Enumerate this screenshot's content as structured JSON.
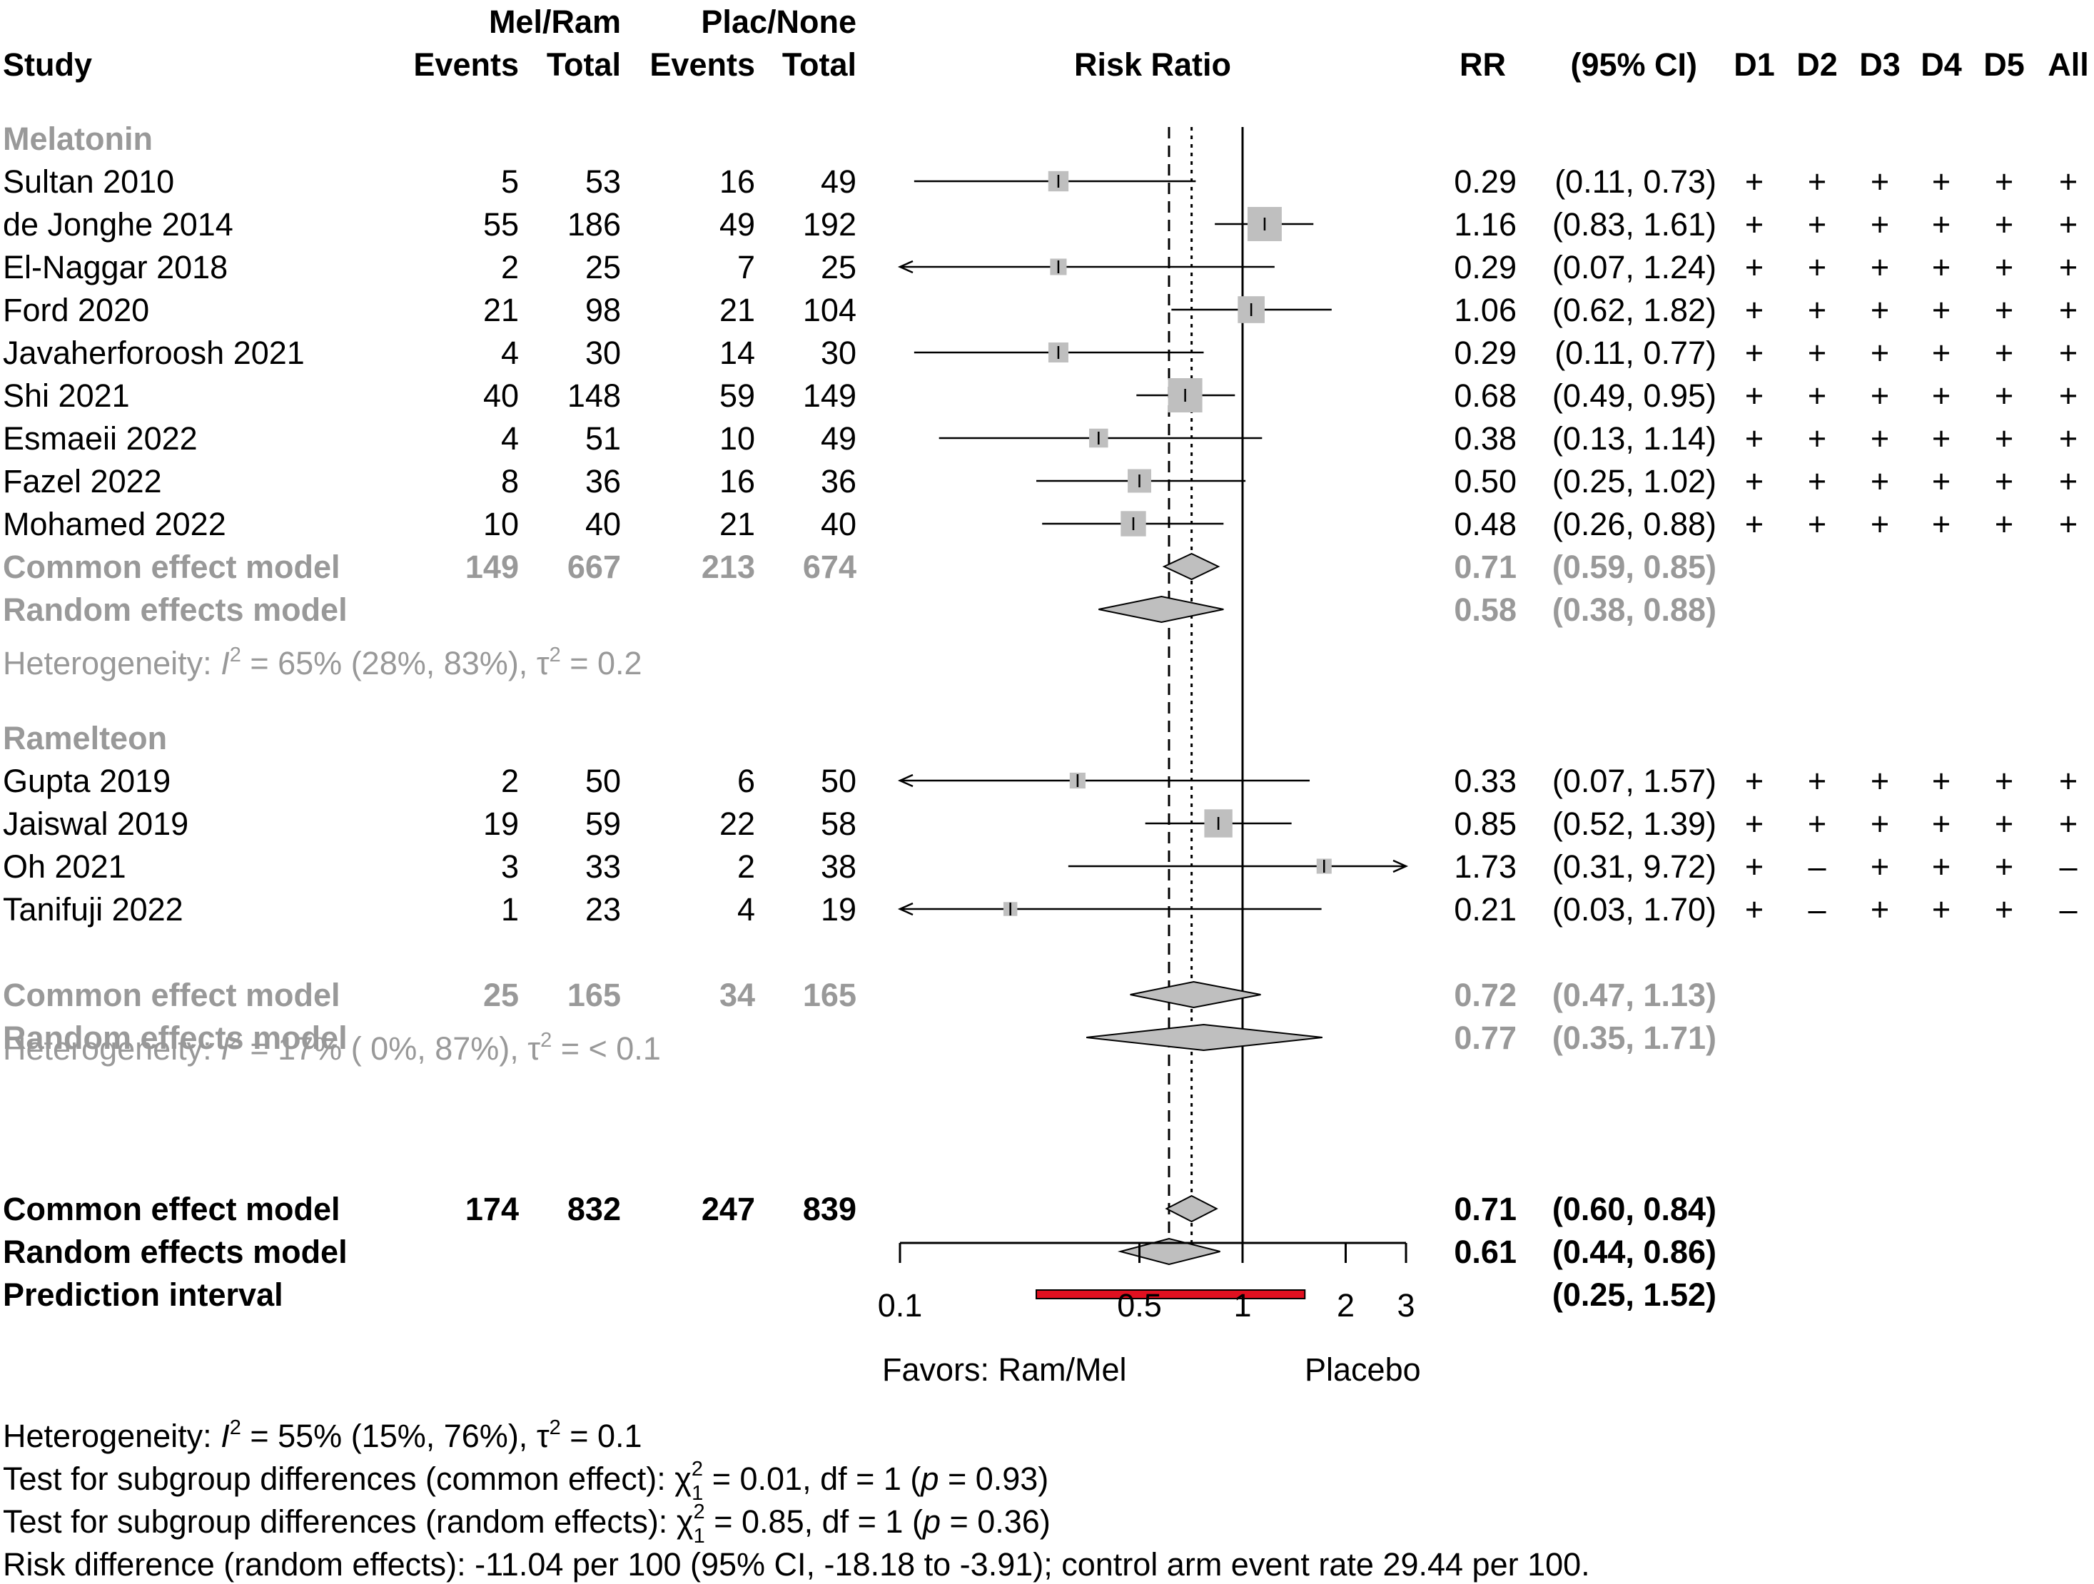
{
  "chart_data": {
    "type": "forest",
    "xscale": "log",
    "xlim": [
      0.1,
      3
    ],
    "xticks": [
      0.1,
      0.5,
      1,
      2,
      3
    ],
    "reference_line": 1,
    "common_line": 0.71,
    "random_line": 0.61,
    "headers": {
      "study": "Study",
      "group1": "Mel/Ram",
      "group2": "Plac/None",
      "events": "Events",
      "total": "Total",
      "axis_title": "Risk Ratio",
      "rr": "RR",
      "ci": "(95% CI)",
      "rob": [
        "D1",
        "D2",
        "D3",
        "D4",
        "D5",
        "All"
      ]
    },
    "subgroups": [
      {
        "name": "Melatonin",
        "studies": [
          {
            "study": "Sultan 2010",
            "e1": "5",
            "n1": "53",
            "e2": "16",
            "n2": "49",
            "rr": 0.29,
            "lo": 0.11,
            "hi": 0.73,
            "rr_text": "0.29",
            "ci_text": "(0.11, 0.73)",
            "rob": [
              "+",
              "+",
              "+",
              "+",
              "+",
              "+"
            ]
          },
          {
            "study": "de Jonghe 2014",
            "e1": "55",
            "n1": "186",
            "e2": "49",
            "n2": "192",
            "rr": 1.16,
            "lo": 0.83,
            "hi": 1.61,
            "rr_text": "1.16",
            "ci_text": "(0.83, 1.61)",
            "rob": [
              "+",
              "+",
              "+",
              "+",
              "+",
              "+"
            ]
          },
          {
            "study": "El-Naggar 2018",
            "e1": "2",
            "n1": "25",
            "e2": "7",
            "n2": "25",
            "rr": 0.29,
            "lo": 0.07,
            "hi": 1.24,
            "rr_text": "0.29",
            "ci_text": "(0.07, 1.24)",
            "rob": [
              "+",
              "+",
              "+",
              "+",
              "+",
              "+"
            ]
          },
          {
            "study": "Ford 2020",
            "e1": "21",
            "n1": "98",
            "e2": "21",
            "n2": "104",
            "rr": 1.06,
            "lo": 0.62,
            "hi": 1.82,
            "rr_text": "1.06",
            "ci_text": "(0.62, 1.82)",
            "rob": [
              "+",
              "+",
              "+",
              "+",
              "+",
              "+"
            ]
          },
          {
            "study": "Javaherforoosh 2021",
            "e1": "4",
            "n1": "30",
            "e2": "14",
            "n2": "30",
            "rr": 0.29,
            "lo": 0.11,
            "hi": 0.77,
            "rr_text": "0.29",
            "ci_text": "(0.11, 0.77)",
            "rob": [
              "+",
              "+",
              "+",
              "+",
              "+",
              "+"
            ]
          },
          {
            "study": "Shi 2021",
            "e1": "40",
            "n1": "148",
            "e2": "59",
            "n2": "149",
            "rr": 0.68,
            "lo": 0.49,
            "hi": 0.95,
            "rr_text": "0.68",
            "ci_text": "(0.49, 0.95)",
            "rob": [
              "+",
              "+",
              "+",
              "+",
              "+",
              "+"
            ]
          },
          {
            "study": "Esmaeii 2022",
            "e1": "4",
            "n1": "51",
            "e2": "10",
            "n2": "49",
            "rr": 0.38,
            "lo": 0.13,
            "hi": 1.14,
            "rr_text": "0.38",
            "ci_text": "(0.13, 1.14)",
            "rob": [
              "+",
              "+",
              "+",
              "+",
              "+",
              "+"
            ]
          },
          {
            "study": "Fazel 2022",
            "e1": "8",
            "n1": "36",
            "e2": "16",
            "n2": "36",
            "rr": 0.5,
            "lo": 0.25,
            "hi": 1.02,
            "rr_text": "0.50",
            "ci_text": "(0.25, 1.02)",
            "rob": [
              "+",
              "+",
              "+",
              "+",
              "+",
              "+"
            ]
          },
          {
            "study": "Mohamed 2022",
            "e1": "10",
            "n1": "40",
            "e2": "21",
            "n2": "40",
            "rr": 0.48,
            "lo": 0.26,
            "hi": 0.88,
            "rr_text": "0.48",
            "ci_text": "(0.26, 0.88)",
            "rob": [
              "+",
              "+",
              "+",
              "+",
              "+",
              "+"
            ]
          }
        ],
        "common": {
          "label": "Common effect model",
          "e1": "149",
          "n1": "667",
          "e2": "213",
          "n2": "674",
          "rr": 0.71,
          "lo": 0.59,
          "hi": 0.85,
          "rr_text": "0.71",
          "ci_text": "(0.59, 0.85)"
        },
        "random": {
          "label": "Random effects model",
          "rr": 0.58,
          "lo": 0.38,
          "hi": 0.88,
          "rr_text": "0.58",
          "ci_text": "(0.38, 0.88)"
        },
        "heterogeneity": {
          "prefix": "Heterogeneity: ",
          "i": "I",
          "i_exp": "2",
          "mid": " = 65% (28%, 83%), ",
          "tau": "τ",
          "tau_exp": "2",
          "end": " = 0.2"
        }
      },
      {
        "name": "Ramelteon",
        "studies": [
          {
            "study": "Gupta 2019",
            "e1": "2",
            "n1": "50",
            "e2": "6",
            "n2": "50",
            "rr": 0.33,
            "lo": 0.07,
            "hi": 1.57,
            "rr_text": "0.33",
            "ci_text": "(0.07, 1.57)",
            "rob": [
              "+",
              "+",
              "+",
              "+",
              "+",
              "+"
            ]
          },
          {
            "study": "Jaiswal 2019",
            "e1": "19",
            "n1": "59",
            "e2": "22",
            "n2": "58",
            "rr": 0.85,
            "lo": 0.52,
            "hi": 1.39,
            "rr_text": "0.85",
            "ci_text": "(0.52, 1.39)",
            "rob": [
              "+",
              "+",
              "+",
              "+",
              "+",
              "+"
            ]
          },
          {
            "study": "Oh 2021",
            "e1": "3",
            "n1": "33",
            "e2": "2",
            "n2": "38",
            "rr": 1.73,
            "lo": 0.31,
            "hi": 9.72,
            "rr_text": "1.73",
            "ci_text": "(0.31, 9.72)",
            "rob": [
              "+",
              "–",
              "+",
              "+",
              "+",
              "–"
            ]
          },
          {
            "study": "Tanifuji 2022",
            "e1": "1",
            "n1": "23",
            "e2": "4",
            "n2": "19",
            "rr": 0.21,
            "lo": 0.03,
            "hi": 1.7,
            "rr_text": "0.21",
            "ci_text": "(0.03, 1.70)",
            "rob": [
              "+",
              "–",
              "+",
              "+",
              "+",
              "–"
            ]
          }
        ],
        "common": {
          "label": "Common effect model",
          "e1": "25",
          "n1": "165",
          "e2": "34",
          "n2": "165",
          "rr": 0.72,
          "lo": 0.47,
          "hi": 1.13,
          "rr_text": "0.72",
          "ci_text": "(0.47, 1.13)"
        },
        "random": {
          "label": "Random effects model",
          "rr": 0.77,
          "lo": 0.35,
          "hi": 1.71,
          "rr_text": "0.77",
          "ci_text": "(0.35, 1.71)"
        },
        "heterogeneity": {
          "prefix": "Heterogeneity: ",
          "i": "I",
          "i_exp": "2",
          "mid": " = 17% ( 0%, 87%), ",
          "tau": "τ",
          "tau_exp": "2",
          "end": " = < 0.1"
        }
      }
    ],
    "overall": {
      "common": {
        "label": "Common effect model",
        "e1": "174",
        "n1": "832",
        "e2": "247",
        "n2": "839",
        "rr": 0.71,
        "lo": 0.6,
        "hi": 0.84,
        "rr_text": "0.71",
        "ci_text": "(0.60, 0.84)"
      },
      "random": {
        "label": "Random effects model",
        "rr": 0.61,
        "lo": 0.44,
        "hi": 0.86,
        "rr_text": "0.61",
        "ci_text": "(0.44, 0.86)"
      },
      "prediction": {
        "label": "Prediction interval",
        "lo": 0.25,
        "hi": 1.52,
        "ci_text": "(0.25, 1.52)"
      }
    },
    "favors_left": "Favors: Ram/Mel",
    "favors_right": "Placebo",
    "footer": {
      "het_prefix": "Heterogeneity: ",
      "het_i": "I",
      "het_i_exp": "2",
      "het_mid": " = 55% (15%, 76%), ",
      "het_tau": "τ",
      "het_tau_exp": "2",
      "het_end": " = 0.1",
      "sub_common_prefix": "Test for subgroup differences (common effect): ",
      "sub_common_chi": "χ",
      "sub_common_sup": "2",
      "sub_common_sub": "1",
      "sub_common_mid": " = 0.01, df = 1 (",
      "sub_common_p": "p",
      "sub_common_end": " = 0.93)",
      "sub_random_prefix": "Test for subgroup differences (random effects): ",
      "sub_random_chi": "χ",
      "sub_random_sup": "2",
      "sub_random_sub": "1",
      "sub_random_mid": " = 0.85, df = 1 (",
      "sub_random_p": "p",
      "sub_random_end": " = 0.36)",
      "risk_difference": "Risk difference (random effects): -11.04 per 100 (95% CI, -18.18 to -3.91); control arm event rate 29.44 per 100."
    },
    "colors": {
      "square": "#bfbfbf",
      "diamond": "#bfbfbf",
      "subgroup_text": "#999999",
      "prediction": "#e01020"
    }
  }
}
